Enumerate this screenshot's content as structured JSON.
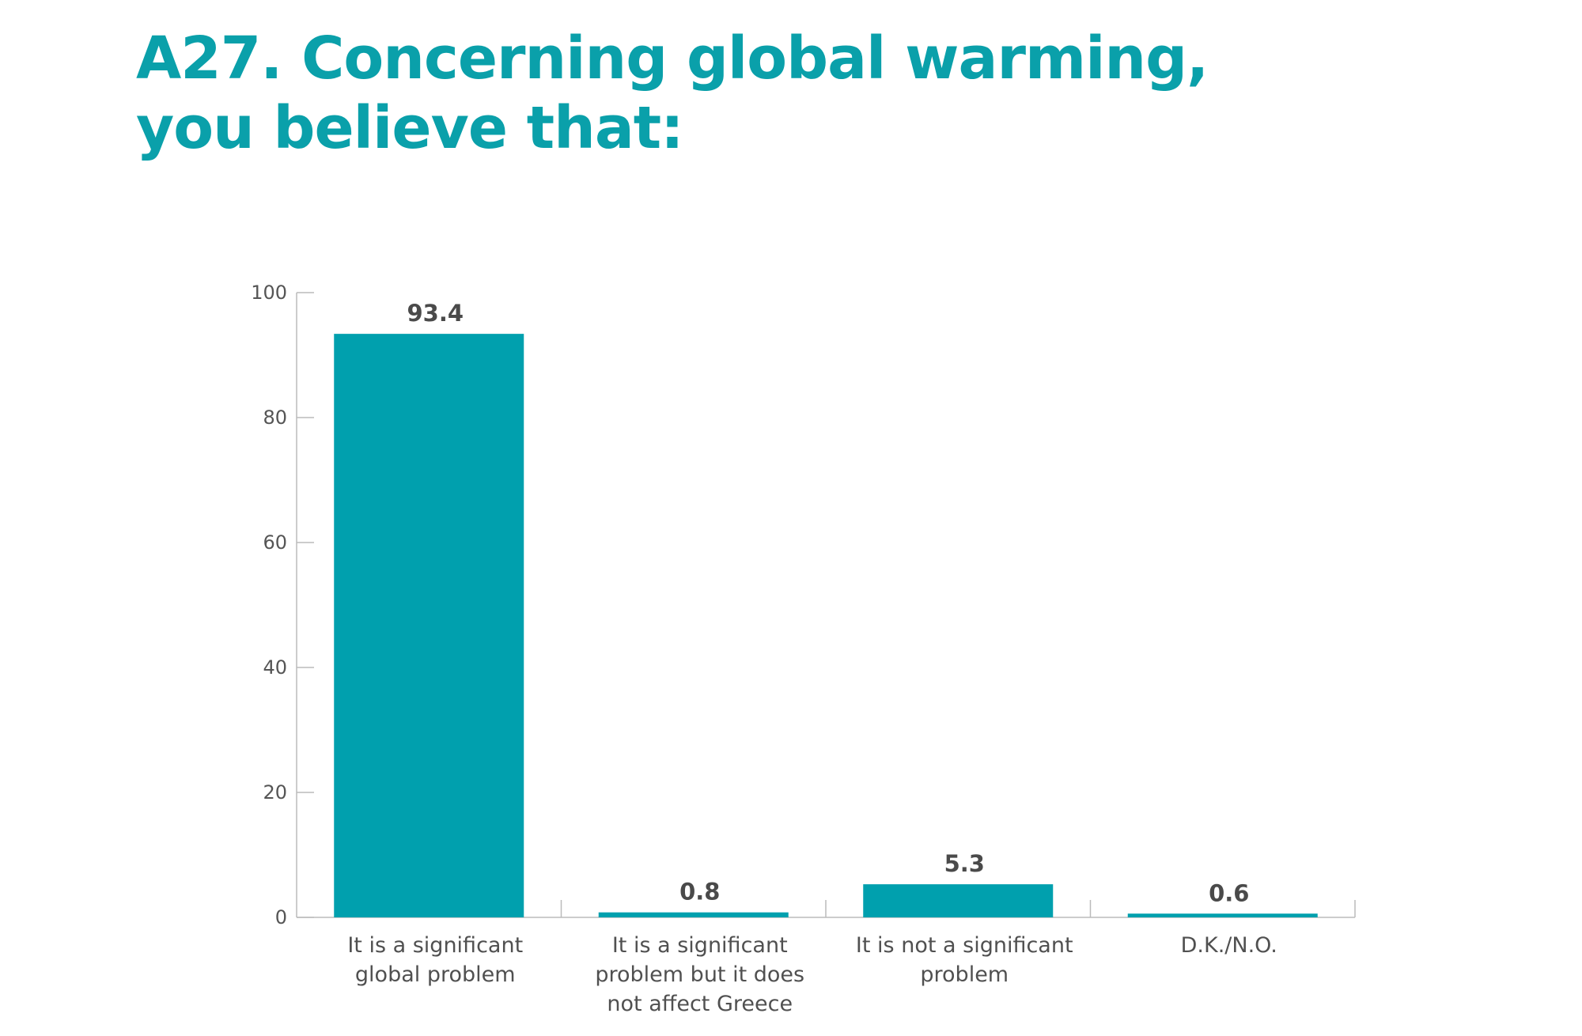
{
  "title": {
    "line1": "A27. Concerning global warming,",
    "line2": "you believe that:"
  },
  "colors": {
    "title": "#0aa0aa",
    "bar": "#00a0ae",
    "axis": "#bbbbbb",
    "text": "#505050"
  },
  "chart_data": {
    "type": "bar",
    "title": "A27. Concerning global warming, you believe that:",
    "xlabel": "",
    "ylabel": "",
    "ylim": [
      0,
      100
    ],
    "yticks": [
      0,
      20,
      40,
      60,
      80,
      100
    ],
    "grid": false,
    "categories": [
      [
        "It is a significant",
        "global problem"
      ],
      [
        "It is a significant",
        "problem but it does",
        "not affect Greece"
      ],
      [
        "It is not a significant",
        "problem"
      ],
      [
        "D.K./N.O."
      ]
    ],
    "values": [
      93.4,
      0.8,
      5.3,
      0.6
    ],
    "value_labels": [
      "93.4",
      "0.8",
      "5.3",
      "0.6"
    ]
  }
}
